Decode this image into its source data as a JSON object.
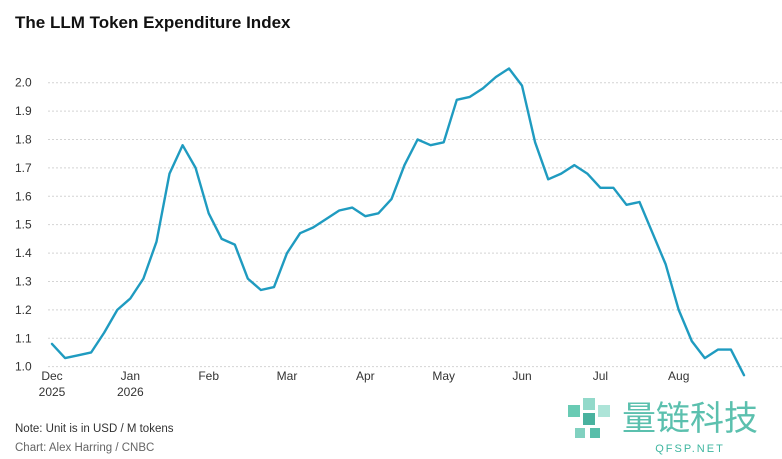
{
  "chart_data": {
    "type": "line",
    "title": "The LLM Token Expenditure Index",
    "note": "Note: Unit is in USD / M tokens",
    "source": "Chart: Alex Harring / CNBC",
    "categories": [
      "Dec 2025",
      null,
      null,
      null,
      null,
      null,
      "Jan 2026",
      null,
      null,
      null,
      null,
      null,
      "Feb",
      null,
      null,
      null,
      null,
      null,
      "Mar",
      null,
      null,
      null,
      null,
      null,
      "Apr",
      null,
      null,
      null,
      null,
      null,
      "May",
      null,
      null,
      null,
      null,
      null,
      "Jun",
      null,
      null,
      null,
      null,
      null,
      "Jul",
      null,
      null,
      null,
      null,
      null,
      "Aug",
      null,
      null,
      null,
      null,
      null
    ],
    "series": [
      {
        "color": "#1f9bc0",
        "values": [
          1.08,
          1.03,
          1.04,
          1.05,
          1.12,
          1.2,
          1.24,
          1.31,
          1.44,
          1.68,
          1.78,
          1.7,
          1.54,
          1.45,
          1.43,
          1.31,
          1.27,
          1.28,
          1.4,
          1.47,
          1.49,
          1.52,
          1.55,
          1.56,
          1.53,
          1.54,
          1.59,
          1.71,
          1.8,
          1.78,
          1.79,
          1.94,
          1.95,
          1.98,
          2.02,
          2.05,
          1.99,
          1.79,
          1.66,
          1.68,
          1.71,
          1.68,
          1.63,
          1.63,
          1.57,
          1.58,
          1.47,
          1.36,
          1.2,
          1.09,
          1.03,
          1.06,
          1.06,
          0.97
        ]
      }
    ],
    "ylim": [
      0.96,
      2.08
    ],
    "yticks": [
      {
        "value": 1.0,
        "label": "1.0"
      },
      1.1,
      1.2,
      1.3,
      1.4,
      1.5,
      1.6,
      1.7,
      1.8,
      1.9,
      {
        "value": 2.0,
        "label": "2.0"
      }
    ],
    "grid": true
  },
  "watermark": {
    "text": "量链科技",
    "url": "QFSP.NET"
  }
}
